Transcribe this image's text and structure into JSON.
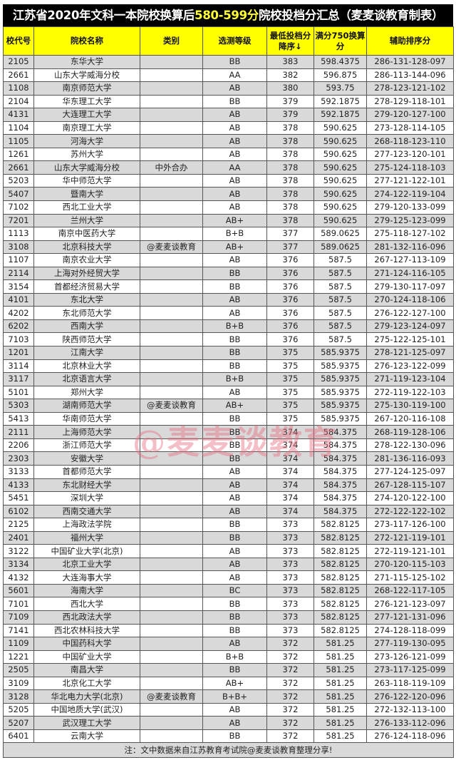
{
  "title": {
    "prefix": "江苏省2020年文科一本院校换算后",
    "highlight": "580-599分",
    "suffix": "院校投档分汇总（麦麦谈教育制表）",
    "highlight_color": "#ffff33"
  },
  "headers": [
    "校代号",
    "院校名称",
    "类别",
    "选测等级",
    "最低投档分降序↓",
    "满分750换算分",
    "辅助排序分"
  ],
  "rows": [
    [
      "2105",
      "东华大学",
      "",
      "BB",
      "383",
      "598.4375",
      "286-131-128-097"
    ],
    [
      "2661",
      "山东大学威海分校",
      "",
      "AA",
      "382",
      "596.875",
      "286-113-144-096"
    ],
    [
      "1108",
      "南京师范大学",
      "",
      "AB",
      "380",
      "593.75",
      "278-123-121-102"
    ],
    [
      "2104",
      "华东理工大学",
      "",
      "BB",
      "379",
      "592.1875",
      "278-129-118-101"
    ],
    [
      "4131",
      "大连理工大学",
      "",
      "AB",
      "379",
      "592.1875",
      "279-120-127-100"
    ],
    [
      "1104",
      "南京理工大学",
      "",
      "AB",
      "378",
      "590.625",
      "273-128-114-105"
    ],
    [
      "1105",
      "河海大学",
      "",
      "AB",
      "378",
      "590.625",
      "268-118-123-110"
    ],
    [
      "1261",
      "苏州大学",
      "",
      "AB",
      "378",
      "590.625",
      "277-123-120-101"
    ],
    [
      "2661",
      "山东大学威海分校",
      "中外合办",
      "AA",
      "378",
      "590.625",
      "275-124-118-103"
    ],
    [
      "5203",
      "华中师范大学",
      "",
      "AB",
      "378",
      "590.625",
      "277-121-122-101"
    ],
    [
      "5407",
      "暨南大学",
      "",
      "AB",
      "378",
      "590.625",
      "274-122-119-104"
    ],
    [
      "7102",
      "西北工业大学",
      "",
      "AB",
      "378",
      "590.625",
      "279-120-133-099"
    ],
    [
      "7201",
      "兰州大学",
      "",
      "AB+",
      "378",
      "590.625",
      "279-125-123-099"
    ],
    [
      "1113",
      "南京中医药大学",
      "",
      "B+B",
      "377",
      "589.0625",
      "275-118-127-102"
    ],
    [
      "3108",
      "北京科技大学",
      "@麦麦谈教育",
      "AB+",
      "377",
      "589.0625",
      "281-132-116-096"
    ],
    [
      "1107",
      "南京农业大学",
      "",
      "AB",
      "376",
      "587.5",
      "267-127-113-109"
    ],
    [
      "2114",
      "上海对外经贸大学",
      "",
      "BB",
      "376",
      "587.5",
      "271-124-116-105"
    ],
    [
      "3154",
      "首都经济贸易大学",
      "",
      "BB",
      "376",
      "587.5",
      "279-130-117-097"
    ],
    [
      "4101",
      "东北大学",
      "",
      "AB",
      "376",
      "587.5",
      "270-124-118-106"
    ],
    [
      "4202",
      "东北师范大学",
      "",
      "AB",
      "376",
      "587.5",
      "276-122-127-100"
    ],
    [
      "6202",
      "西南大学",
      "",
      "B+B",
      "376",
      "587.5",
      "279-123-124-097"
    ],
    [
      "7103",
      "陕西师范大学",
      "",
      "BB",
      "376",
      "587.5",
      "275-122-125-101"
    ],
    [
      "1201",
      "江南大学",
      "",
      "BB",
      "375",
      "585.9375",
      "278-121-125-097"
    ],
    [
      "3114",
      "北京林业大学",
      "",
      "BB",
      "375",
      "585.9375",
      "276-123-122-099"
    ],
    [
      "3117",
      "北京语言大学",
      "",
      "B+B",
      "375",
      "585.9375",
      "271-119-123-104"
    ],
    [
      "5101",
      "郑州大学",
      "",
      "AB",
      "375",
      "585.9375",
      "272-119-122-103"
    ],
    [
      "5303",
      "湖南师范大学",
      "@麦麦谈教育",
      "AB+",
      "375",
      "585.9375",
      "275-130-119-100"
    ],
    [
      "5413",
      "华南师范大学",
      "",
      "BB",
      "375",
      "585.9375",
      "267-120-116-108"
    ],
    [
      "2111",
      "上海师范大学",
      "",
      "BB",
      "374",
      "584.375",
      "268-119-128-106"
    ],
    [
      "2206",
      "浙江师范大学",
      "",
      "BB",
      "374",
      "584.375",
      "278-122-130-096"
    ],
    [
      "2303",
      "安徽大学",
      "",
      "BB",
      "374",
      "584.375",
      "281-136-116-093"
    ],
    [
      "3133",
      "首都师范大学",
      "",
      "AB",
      "374",
      "584.375",
      "277-124-125-097"
    ],
    [
      "4133",
      "东北财经大学",
      "",
      "AB",
      "374",
      "584.375",
      "267-128-115-107"
    ],
    [
      "5451",
      "深圳大学",
      "",
      "AB",
      "374",
      "584.375",
      "274-120-122-100"
    ],
    [
      "6102",
      "西南交通大学",
      "",
      "AB",
      "374",
      "584.375",
      "272-122-122-102"
    ],
    [
      "2125",
      "上海政法学院",
      "",
      "BB",
      "373",
      "582.8125",
      "273-117-126-100"
    ],
    [
      "2401",
      "福州大学",
      "",
      "BB",
      "373",
      "582.8125",
      "272-121-119-101"
    ],
    [
      "3122",
      "中国矿业大学(北京)",
      "",
      "AB",
      "373",
      "582.8125",
      "272-119-121-101"
    ],
    [
      "3134",
      "北京工业大学",
      "",
      "AB",
      "373",
      "582.8125",
      "270-120-115-103"
    ],
    [
      "4132",
      "大连海事大学",
      "",
      "AB",
      "373",
      "582.8125",
      "271-115-125-102"
    ],
    [
      "5601",
      "海南大学",
      "",
      "BC",
      "373",
      "582.8125",
      "268-122-117-105"
    ],
    [
      "7101",
      "西北大学",
      "",
      "BB",
      "373",
      "582.8125",
      "276-121-123-097"
    ],
    [
      "7109",
      "西北政法大学",
      "",
      "BB",
      "373",
      "582.8125",
      "277-121-131-096"
    ],
    [
      "7141",
      "西北农林科技大学",
      "",
      "BB",
      "373",
      "582.8125",
      "274-128-118-099"
    ],
    [
      "1109",
      "中国药科大学",
      "",
      "AB",
      "372",
      "581.25",
      "277-119-130-095"
    ],
    [
      "1221",
      "中国矿业大学",
      "",
      "B+B",
      "372",
      "581.25",
      "273-126-121-099"
    ],
    [
      "2505",
      "南昌大学",
      "",
      "BB",
      "372",
      "581.25",
      "273-117-125-099"
    ],
    [
      "3109",
      "北京化工大学",
      "",
      "AB+",
      "372",
      "581.25",
      "263-118-119-109"
    ],
    [
      "3128",
      "华北电力大学(北京)",
      "@麦麦谈教育",
      "B+B+",
      "372",
      "581.25",
      "276-122-120-096"
    ],
    [
      "5205",
      "中国地质大学(武汉)",
      "",
      "AB",
      "372",
      "581.25",
      "272-132-113-100"
    ],
    [
      "5207",
      "武汉理工大学",
      "",
      "AB",
      "372",
      "581.25",
      "276-133-112-096"
    ],
    [
      "6401",
      "云南大学",
      "",
      "BB",
      "372",
      "581.25",
      "276-124-118-096"
    ]
  ],
  "footer": "注：文中数据来自江苏教育考试院@麦麦谈教育整理分享!",
  "watermark": "@麦麦谈教育",
  "colors": {
    "header_bg": "#ffff00",
    "stripe": "#d9d9d9",
    "title_bg": "#000000"
  }
}
